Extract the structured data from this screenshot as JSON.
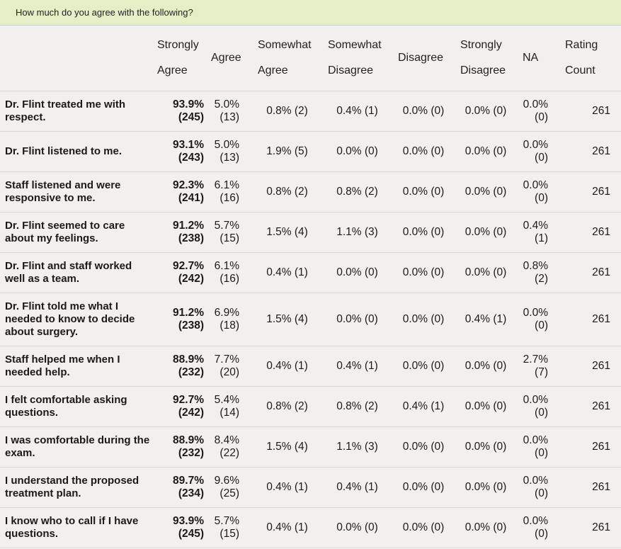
{
  "header_prompt": "How much do you agree with the following?",
  "columns": [
    {
      "l1": "Strongly",
      "l2": "Agree"
    },
    {
      "l1": "Agree",
      "l2": ""
    },
    {
      "l1": "Somewhat",
      "l2": "Agree"
    },
    {
      "l1": "Somewhat",
      "l2": "Disagree"
    },
    {
      "l1": "Disagree",
      "l2": ""
    },
    {
      "l1": "Strongly",
      "l2": "Disagree"
    },
    {
      "l1": "NA",
      "l2": ""
    },
    {
      "l1": "Rating",
      "l2": "Count"
    }
  ],
  "rows": [
    {
      "q": "Dr. Flint treated me with respect.",
      "sa_pct": "93.9%",
      "sa_n": "(245)",
      "ag_pct": "5.0%",
      "ag_n": "(13)",
      "swa": "0.8% (2)",
      "swd": "0.4% (1)",
      "dis": "0.0% (0)",
      "sd": "0.0% (0)",
      "na_pct": "0.0%",
      "na_n": "(0)",
      "count": "261"
    },
    {
      "q": "Dr. Flint listened to me.",
      "sa_pct": "93.1%",
      "sa_n": "(243)",
      "ag_pct": "5.0%",
      "ag_n": "(13)",
      "swa": "1.9% (5)",
      "swd": "0.0% (0)",
      "dis": "0.0% (0)",
      "sd": "0.0% (0)",
      "na_pct": "0.0%",
      "na_n": "(0)",
      "count": "261"
    },
    {
      "q": "Staff listened and were responsive to me.",
      "sa_pct": "92.3%",
      "sa_n": "(241)",
      "ag_pct": "6.1%",
      "ag_n": "(16)",
      "swa": "0.8% (2)",
      "swd": "0.8% (2)",
      "dis": "0.0% (0)",
      "sd": "0.0% (0)",
      "na_pct": "0.0%",
      "na_n": "(0)",
      "count": "261"
    },
    {
      "q": "Dr. Flint seemed to care about my feelings.",
      "sa_pct": "91.2%",
      "sa_n": "(238)",
      "ag_pct": "5.7%",
      "ag_n": "(15)",
      "swa": "1.5% (4)",
      "swd": "1.1% (3)",
      "dis": "0.0% (0)",
      "sd": "0.0% (0)",
      "na_pct": "0.4%",
      "na_n": "(1)",
      "count": "261"
    },
    {
      "q": "Dr. Flint and staff worked well as a team.",
      "sa_pct": "92.7%",
      "sa_n": "(242)",
      "ag_pct": "6.1%",
      "ag_n": "(16)",
      "swa": "0.4% (1)",
      "swd": "0.0% (0)",
      "dis": "0.0% (0)",
      "sd": "0.0% (0)",
      "na_pct": "0.8%",
      "na_n": "(2)",
      "count": "261"
    },
    {
      "q": "Dr. Flint told me what I needed to know to decide about surgery.",
      "sa_pct": "91.2%",
      "sa_n": "(238)",
      "ag_pct": "6.9%",
      "ag_n": "(18)",
      "swa": "1.5% (4)",
      "swd": "0.0% (0)",
      "dis": "0.0% (0)",
      "sd": "0.4% (1)",
      "na_pct": "0.0%",
      "na_n": "(0)",
      "count": "261"
    },
    {
      "q": "Staff helped me when I needed help.",
      "sa_pct": "88.9%",
      "sa_n": "(232)",
      "ag_pct": "7.7%",
      "ag_n": "(20)",
      "swa": "0.4% (1)",
      "swd": "0.4% (1)",
      "dis": "0.0% (0)",
      "sd": "0.0% (0)",
      "na_pct": "2.7%",
      "na_n": "(7)",
      "count": "261"
    },
    {
      "q": "I felt comfortable asking questions.",
      "sa_pct": "92.7%",
      "sa_n": "(242)",
      "ag_pct": "5.4%",
      "ag_n": "(14)",
      "swa": "0.8% (2)",
      "swd": "0.8% (2)",
      "dis": "0.4% (1)",
      "sd": "0.0% (0)",
      "na_pct": "0.0%",
      "na_n": "(0)",
      "count": "261"
    },
    {
      "q": "I was comfortable during the exam.",
      "sa_pct": "88.9%",
      "sa_n": "(232)",
      "ag_pct": "8.4%",
      "ag_n": "(22)",
      "swa": "1.5% (4)",
      "swd": "1.1% (3)",
      "dis": "0.0% (0)",
      "sd": "0.0% (0)",
      "na_pct": "0.0%",
      "na_n": "(0)",
      "count": "261"
    },
    {
      "q": "I understand the proposed treatment plan.",
      "sa_pct": "89.7%",
      "sa_n": "(234)",
      "ag_pct": "9.6%",
      "ag_n": "(25)",
      "swa": "0.4% (1)",
      "swd": "0.4% (1)",
      "dis": "0.0% (0)",
      "sd": "0.0% (0)",
      "na_pct": "0.0%",
      "na_n": "(0)",
      "count": "261"
    },
    {
      "q": "I know who to call if I have questions.",
      "sa_pct": "93.9%",
      "sa_n": "(245)",
      "ag_pct": "5.7%",
      "ag_n": "(15)",
      "swa": "0.4% (1)",
      "swd": "0.0% (0)",
      "dis": "0.0% (0)",
      "sd": "0.0% (0)",
      "na_pct": "0.0%",
      "na_n": "(0)",
      "count": "261"
    }
  ]
}
